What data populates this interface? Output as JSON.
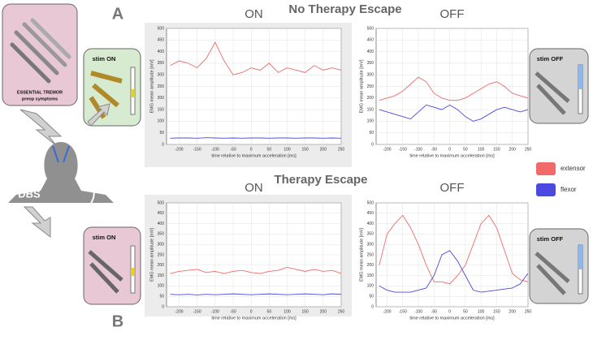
{
  "figure": {
    "label_a": "A",
    "label_b": "B",
    "heading_top": "No Therapy Escape",
    "heading_bottom": "Therapy Escape"
  },
  "illustrations": {
    "tremor_line1": "ESSENTIAL TREMOR",
    "tremor_line2": "preop symptoms",
    "stim_on_top": "stim ON",
    "stim_on_bottom": "stim ON",
    "stim_off_top": "stim OFF",
    "stim_off_bottom": "stim OFF",
    "dbs": "DBS"
  },
  "chart_data": [
    {
      "type": "line",
      "title": "ON",
      "x_label": "time relative to maximum acceleration [ms]",
      "y_label": "EMG mean amplitude [mV]",
      "x": [
        -225,
        -200,
        -175,
        -150,
        -125,
        -100,
        -75,
        -50,
        -25,
        0,
        25,
        50,
        75,
        100,
        125,
        150,
        175,
        200,
        225,
        250
      ],
      "series": [
        {
          "name": "extensor",
          "color": "#f06a6a",
          "values": [
            340,
            360,
            350,
            330,
            370,
            440,
            360,
            300,
            310,
            330,
            320,
            350,
            310,
            330,
            320,
            310,
            340,
            320,
            330,
            320
          ]
        },
        {
          "name": "flexor",
          "color": "#4a4ae0",
          "values": [
            27,
            28,
            28,
            27,
            29,
            28,
            27,
            28,
            27,
            28,
            28,
            27,
            28,
            28,
            27,
            28,
            28,
            27,
            28,
            27
          ]
        }
      ],
      "xlim": [
        -235,
        250
      ],
      "xticks": [
        -200,
        -150,
        -100,
        -50,
        0,
        50,
        100,
        150,
        200,
        250
      ],
      "ylim": [
        0,
        500
      ],
      "yticks": [
        0,
        50,
        100,
        150,
        200,
        250,
        300,
        350,
        400,
        450,
        500
      ],
      "grid": true
    },
    {
      "type": "line",
      "title": "OFF",
      "x_label": "time relative to maximum acceleration [ms]",
      "y_label": "EMG mean amplitude [mV]",
      "x": [
        -225,
        -200,
        -175,
        -150,
        -125,
        -100,
        -75,
        -50,
        -25,
        0,
        25,
        50,
        75,
        100,
        125,
        150,
        175,
        200,
        225,
        250
      ],
      "series": [
        {
          "name": "extensor",
          "color": "#f06a6a",
          "values": [
            190,
            200,
            210,
            230,
            260,
            290,
            270,
            220,
            200,
            190,
            190,
            200,
            220,
            240,
            260,
            270,
            250,
            220,
            210,
            200
          ]
        },
        {
          "name": "flexor",
          "color": "#4a4ae0",
          "values": [
            150,
            140,
            130,
            120,
            110,
            140,
            170,
            160,
            150,
            170,
            150,
            120,
            100,
            110,
            130,
            150,
            160,
            150,
            140,
            150
          ]
        }
      ],
      "xlim": [
        -235,
        250
      ],
      "xticks": [
        -200,
        -150,
        -100,
        -50,
        0,
        50,
        100,
        150,
        200,
        250
      ],
      "ylim": [
        0,
        500
      ],
      "yticks": [
        0,
        50,
        100,
        150,
        200,
        250,
        300,
        350,
        400,
        450,
        500
      ],
      "grid": true
    },
    {
      "type": "line",
      "title": "ON",
      "x_label": "time relative to maximum acceleration [ms]",
      "y_label": "EMG mean amplitude [mV]",
      "x": [
        -225,
        -200,
        -175,
        -150,
        -125,
        -100,
        -75,
        -50,
        -25,
        0,
        25,
        50,
        75,
        100,
        125,
        150,
        175,
        200,
        225,
        250
      ],
      "series": [
        {
          "name": "extensor",
          "color": "#f06a6a",
          "values": [
            160,
            170,
            175,
            180,
            165,
            170,
            160,
            170,
            175,
            165,
            160,
            170,
            175,
            190,
            180,
            170,
            180,
            170,
            175,
            160
          ]
        },
        {
          "name": "flexor",
          "color": "#4a4ae0",
          "values": [
            60,
            58,
            60,
            57,
            60,
            58,
            60,
            62,
            60,
            58,
            60,
            62,
            60,
            58,
            60,
            62,
            60,
            58,
            62,
            60
          ]
        }
      ],
      "xlim": [
        -235,
        250
      ],
      "xticks": [
        -200,
        -150,
        -100,
        -50,
        0,
        50,
        100,
        150,
        200,
        250
      ],
      "ylim": [
        0,
        500
      ],
      "yticks": [
        0,
        50,
        100,
        150,
        200,
        250,
        300,
        350,
        400,
        450,
        500
      ],
      "grid": true
    },
    {
      "type": "line",
      "title": "OFF",
      "x_label": "time relative to maximum acceleration [ms]",
      "y_label": "EMG mean amplitude [mV]",
      "x": [
        -225,
        -200,
        -175,
        -150,
        -125,
        -100,
        -75,
        -50,
        -25,
        0,
        25,
        50,
        75,
        100,
        125,
        150,
        175,
        200,
        225,
        250
      ],
      "series": [
        {
          "name": "extensor",
          "color": "#f06a6a",
          "values": [
            200,
            350,
            400,
            440,
            380,
            300,
            200,
            120,
            120,
            110,
            150,
            200,
            300,
            400,
            440,
            380,
            270,
            160,
            130,
            120
          ]
        },
        {
          "name": "flexor",
          "color": "#4a4ae0",
          "values": [
            100,
            80,
            70,
            70,
            70,
            80,
            90,
            150,
            250,
            270,
            220,
            150,
            80,
            70,
            75,
            80,
            85,
            90,
            110,
            160
          ]
        }
      ],
      "xlim": [
        -235,
        250
      ],
      "xticks": [
        -200,
        -150,
        -100,
        -50,
        0,
        50,
        100,
        150,
        200,
        250
      ],
      "ylim": [
        0,
        500
      ],
      "yticks": [
        0,
        50,
        100,
        150,
        200,
        250,
        300,
        350,
        400,
        450,
        500
      ],
      "grid": true
    }
  ]
}
